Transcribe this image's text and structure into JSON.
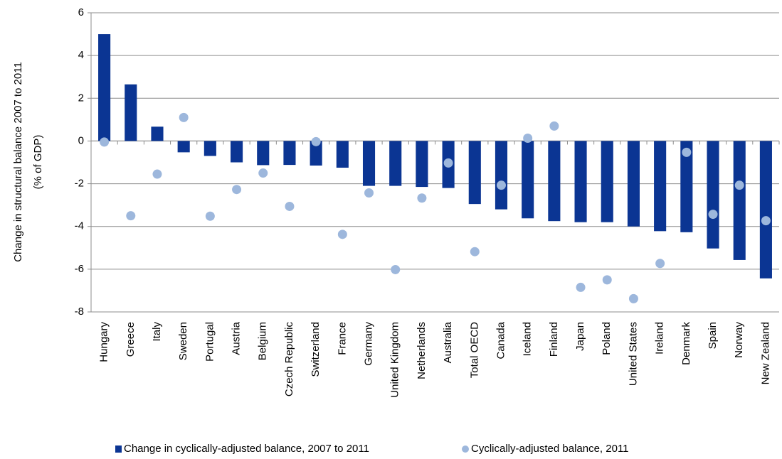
{
  "chart_data": {
    "type": "bar",
    "ylabel": [
      "Change in structural balance 2007 to 2011",
      "(% of GDP)"
    ],
    "categories": [
      "Hungary",
      "Greece",
      "Italy",
      "Sweden",
      "Portugal",
      "Austria",
      "Belgium",
      "Czech Republic",
      "Switzerland",
      "France",
      "Germany",
      "United Kingdom",
      "Netherlands",
      "Australia",
      "Total OECD",
      "Canada",
      "Iceland",
      "Finland",
      "Japan",
      "Poland",
      "United States",
      "Ireland",
      "Denmark",
      "Spain",
      "Norway",
      "New Zealand"
    ],
    "series": [
      {
        "name": "Change in cyclically-adjusted balance, 2007 to 2011",
        "color": "#0b3593",
        "mark": "bar",
        "values": [
          5.0,
          2.65,
          0.67,
          -0.53,
          -0.7,
          -1.0,
          -1.13,
          -1.12,
          -1.15,
          -1.25,
          -2.1,
          -2.1,
          -2.15,
          -2.2,
          -2.95,
          -3.2,
          -3.62,
          -3.75,
          -3.8,
          -3.8,
          -4.0,
          -4.22,
          -4.27,
          -5.03,
          -5.57,
          -6.43
        ]
      },
      {
        "name": "Cyclically-adjusted balance, 2011",
        "color": "#9db7dc",
        "mark": "dot",
        "values": [
          -0.05,
          -3.5,
          -1.55,
          1.1,
          -3.52,
          -2.27,
          -1.5,
          -3.06,
          -0.03,
          -4.37,
          -2.43,
          -6.02,
          -2.67,
          -1.03,
          -5.18,
          -2.07,
          0.13,
          0.7,
          -6.85,
          -6.5,
          -7.38,
          -5.73,
          -0.53,
          -3.43,
          -2.07,
          -3.73
        ]
      }
    ],
    "ylim": [
      -8,
      6
    ],
    "yticks": [
      -8,
      -6,
      -4,
      -2,
      0,
      2,
      4,
      6
    ],
    "grid": true,
    "legend": "bottom"
  }
}
